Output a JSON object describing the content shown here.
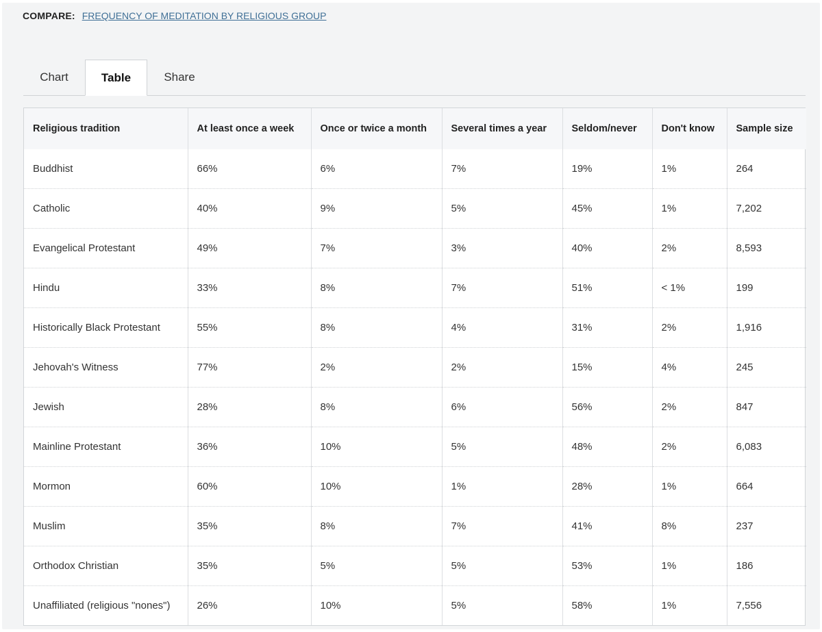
{
  "compare": {
    "label": "COMPARE:",
    "link_text": "FREQUENCY OF MEDITATION BY RELIGIOUS GROUP"
  },
  "tabs": [
    {
      "label": "Chart",
      "active": false
    },
    {
      "label": "Table",
      "active": true
    },
    {
      "label": "Share",
      "active": false
    }
  ],
  "table": {
    "headers": [
      "Religious tradition",
      "At least once a week",
      "Once or twice a month",
      "Several times a year",
      "Seldom/never",
      "Don't know",
      "Sample size"
    ],
    "rows": [
      [
        "Buddhist",
        "66%",
        "6%",
        "7%",
        "19%",
        "1%",
        "264"
      ],
      [
        "Catholic",
        "40%",
        "9%",
        "5%",
        "45%",
        "1%",
        "7,202"
      ],
      [
        "Evangelical Protestant",
        "49%",
        "7%",
        "3%",
        "40%",
        "2%",
        "8,593"
      ],
      [
        "Hindu",
        "33%",
        "8%",
        "7%",
        "51%",
        "< 1%",
        "199"
      ],
      [
        "Historically Black Protestant",
        "55%",
        "8%",
        "4%",
        "31%",
        "2%",
        "1,916"
      ],
      [
        "Jehovah's Witness",
        "77%",
        "2%",
        "2%",
        "15%",
        "4%",
        "245"
      ],
      [
        "Jewish",
        "28%",
        "8%",
        "6%",
        "56%",
        "2%",
        "847"
      ],
      [
        "Mainline Protestant",
        "36%",
        "10%",
        "5%",
        "48%",
        "2%",
        "6,083"
      ],
      [
        "Mormon",
        "60%",
        "10%",
        "1%",
        "28%",
        "1%",
        "664"
      ],
      [
        "Muslim",
        "35%",
        "8%",
        "7%",
        "41%",
        "8%",
        "237"
      ],
      [
        "Orthodox Christian",
        "35%",
        "5%",
        "5%",
        "53%",
        "1%",
        "186"
      ],
      [
        "Unaffiliated (religious \"nones\")",
        "26%",
        "10%",
        "5%",
        "58%",
        "1%",
        "7,556"
      ]
    ]
  },
  "colors": {
    "panel_bg": "#f3f4f5",
    "link": "#3f6f96",
    "header_bg": "#f6f7f9",
    "border": "#d2d5d8"
  }
}
